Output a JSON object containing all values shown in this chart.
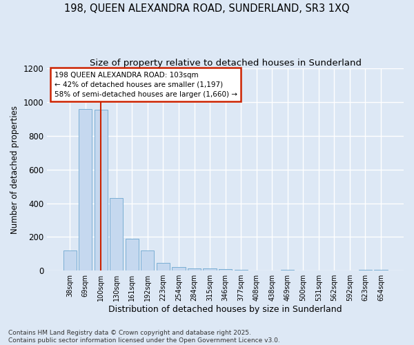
{
  "title": "198, QUEEN ALEXANDRA ROAD, SUNDERLAND, SR3 1XQ",
  "subtitle": "Size of property relative to detached houses in Sunderland",
  "xlabel": "Distribution of detached houses by size in Sunderland",
  "ylabel": "Number of detached properties",
  "categories": [
    "38sqm",
    "69sqm",
    "100sqm",
    "130sqm",
    "161sqm",
    "192sqm",
    "223sqm",
    "254sqm",
    "284sqm",
    "315sqm",
    "346sqm",
    "377sqm",
    "408sqm",
    "438sqm",
    "469sqm",
    "500sqm",
    "531sqm",
    "562sqm",
    "592sqm",
    "623sqm",
    "654sqm"
  ],
  "values": [
    120,
    960,
    955,
    430,
    190,
    120,
    45,
    20,
    15,
    15,
    10,
    5,
    0,
    0,
    5,
    0,
    0,
    0,
    0,
    5,
    5
  ],
  "bar_color": "#c5d8ef",
  "bar_edge_color": "#7aaed4",
  "background_color": "#dde8f5",
  "plot_bg_color": "#dde8f5",
  "grid_color": "#ffffff",
  "red_line_x": 2,
  "annotation_text": "198 QUEEN ALEXANDRA ROAD: 103sqm\n← 42% of detached houses are smaller (1,197)\n58% of semi-detached houses are larger (1,660) →",
  "ylim": [
    0,
    1200
  ],
  "yticks": [
    0,
    200,
    400,
    600,
    800,
    1000,
    1200
  ],
  "footer": "Contains HM Land Registry data © Crown copyright and database right 2025.\nContains public sector information licensed under the Open Government Licence v3.0.",
  "title_fontsize": 10.5,
  "subtitle_fontsize": 9.5,
  "ylabel_fontsize": 8.5,
  "xlabel_fontsize": 9
}
